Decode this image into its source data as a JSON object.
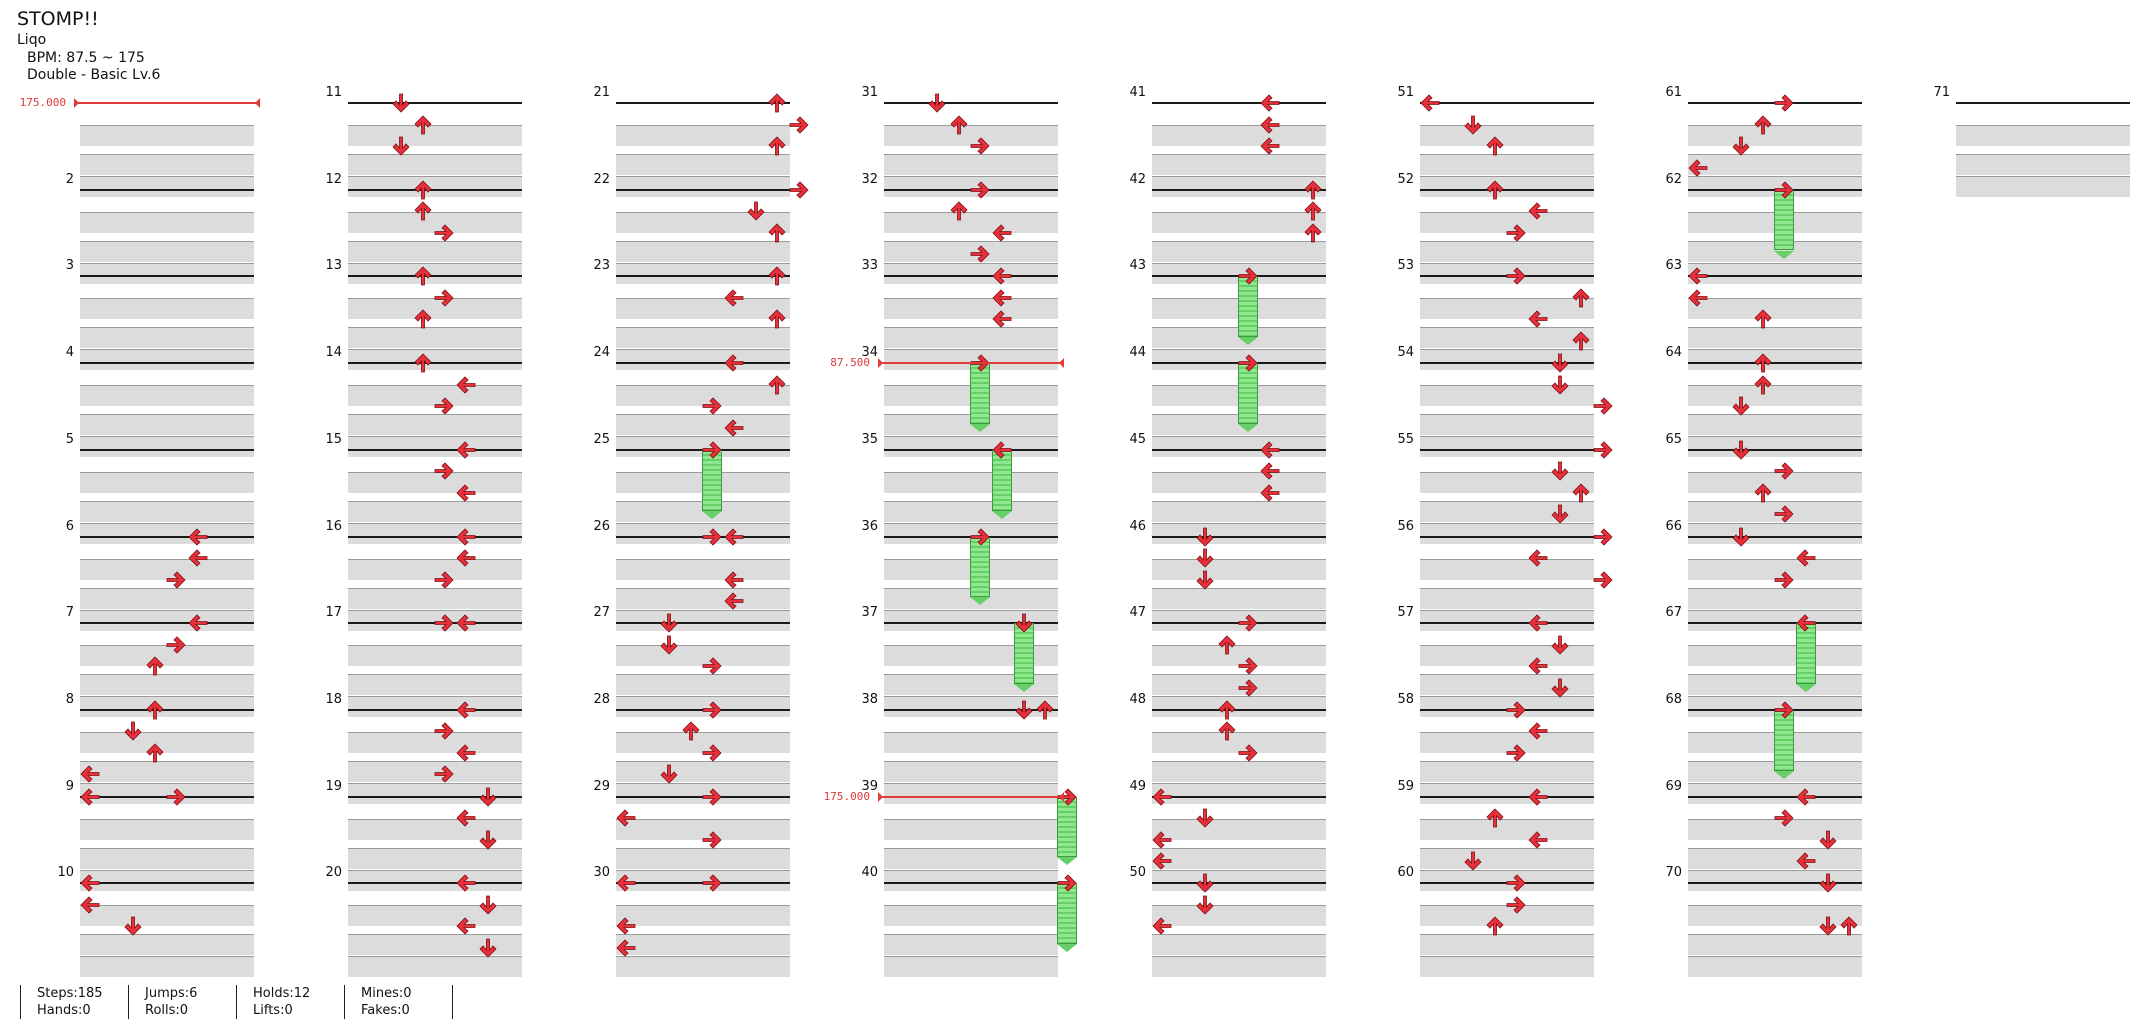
{
  "song": {
    "title": "STOMP!!",
    "artist": "Liqo",
    "bpm": "BPM: 87.5 ~ 175",
    "chart": "Double - Basic Lv.6"
  },
  "stats": {
    "steps": "Steps:185",
    "hands": "Hands:0",
    "jumps": "Jumps:6",
    "rolls": "Rolls:0",
    "holds": "Holds:12",
    "lifts": "Lifts:0",
    "mines": "Mines:0",
    "fakes": "Fakes:0"
  },
  "colors": {
    "arrow": "#e8303a",
    "hold": "#7ddc7d",
    "bpm_marker": "#e23a3a",
    "stripe": "#dcdcdc"
  },
  "bpm_changes": [
    {
      "measure": 1,
      "label": "175.000"
    },
    {
      "measure": 34,
      "label": "87.500"
    },
    {
      "measure": 39,
      "label": "175.000"
    }
  ],
  "measures": [
    {
      "n": "",
      "notes": []
    },
    {
      "n": "2",
      "notes": []
    },
    {
      "n": "3",
      "notes": []
    },
    {
      "n": "4",
      "notes": []
    },
    {
      "n": "5",
      "notes": []
    },
    {
      "n": "6",
      "notes": [
        [
          0,
          5,
          "left"
        ],
        [
          0.25,
          5,
          "left"
        ],
        [
          0.5,
          4,
          "right"
        ]
      ]
    },
    {
      "n": "7",
      "notes": [
        [
          0,
          5,
          "left"
        ],
        [
          0.25,
          4,
          "right"
        ],
        [
          0.5,
          3,
          "up"
        ]
      ]
    },
    {
      "n": "8",
      "notes": [
        [
          0,
          3,
          "up"
        ],
        [
          0.25,
          2,
          "down"
        ],
        [
          0.5,
          3,
          "up"
        ],
        [
          0.75,
          0,
          "left"
        ]
      ]
    },
    {
      "n": "9",
      "notes": [
        [
          0,
          0,
          "left"
        ],
        [
          0,
          4,
          "right"
        ]
      ]
    },
    {
      "n": "10",
      "notes": [
        [
          0,
          0,
          "left"
        ],
        [
          0.25,
          0,
          "left"
        ],
        [
          0.5,
          2,
          "down"
        ]
      ]
    },
    {
      "n": "11",
      "notes": [
        [
          0,
          2,
          "down"
        ],
        [
          0.25,
          3,
          "up"
        ],
        [
          0.5,
          2,
          "down"
        ]
      ]
    },
    {
      "n": "12",
      "notes": [
        [
          0,
          3,
          "up"
        ],
        [
          0.25,
          3,
          "up"
        ],
        [
          0.5,
          4,
          "right"
        ]
      ]
    },
    {
      "n": "13",
      "notes": [
        [
          0,
          3,
          "up"
        ],
        [
          0.25,
          4,
          "right"
        ],
        [
          0.5,
          3,
          "up"
        ]
      ]
    },
    {
      "n": "14",
      "notes": [
        [
          0,
          3,
          "up"
        ],
        [
          0.25,
          5,
          "left"
        ],
        [
          0.5,
          4,
          "right"
        ]
      ]
    },
    {
      "n": "15",
      "notes": [
        [
          0,
          5,
          "left"
        ],
        [
          0.25,
          4,
          "right"
        ],
        [
          0.5,
          5,
          "left"
        ]
      ]
    },
    {
      "n": "16",
      "notes": [
        [
          0,
          5,
          "left"
        ],
        [
          0.25,
          5,
          "left"
        ],
        [
          0.5,
          4,
          "right"
        ]
      ]
    },
    {
      "n": "17",
      "notes": [
        [
          0,
          4,
          "right"
        ],
        [
          0,
          5,
          "left"
        ]
      ]
    },
    {
      "n": "18",
      "notes": [
        [
          0,
          5,
          "left"
        ],
        [
          0.25,
          4,
          "right"
        ],
        [
          0.5,
          5,
          "left"
        ],
        [
          0.75,
          4,
          "right"
        ]
      ]
    },
    {
      "n": "19",
      "notes": [
        [
          0,
          6,
          "down"
        ],
        [
          0.25,
          5,
          "left"
        ],
        [
          0.5,
          6,
          "down"
        ]
      ]
    },
    {
      "n": "20",
      "notes": [
        [
          0,
          5,
          "left"
        ],
        [
          0.25,
          6,
          "down"
        ],
        [
          0.5,
          5,
          "left"
        ],
        [
          0.75,
          6,
          "down"
        ]
      ]
    },
    {
      "n": "21",
      "notes": [
        [
          0,
          7,
          "up"
        ],
        [
          0.25,
          8,
          "right"
        ],
        [
          0.5,
          7,
          "up"
        ]
      ]
    },
    {
      "n": "22",
      "notes": [
        [
          0,
          8,
          "right"
        ],
        [
          0.25,
          6,
          "down"
        ],
        [
          0.5,
          7,
          "up"
        ]
      ]
    },
    {
      "n": "23",
      "notes": [
        [
          0,
          7,
          "up"
        ],
        [
          0.25,
          5,
          "left"
        ],
        [
          0.5,
          7,
          "up"
        ]
      ]
    },
    {
      "n": "24",
      "notes": [
        [
          0,
          5,
          "left"
        ],
        [
          0.25,
          7,
          "up"
        ],
        [
          0.5,
          4,
          "right"
        ],
        [
          0.75,
          5,
          "left"
        ]
      ]
    },
    {
      "n": "25",
      "notes": [
        [
          0,
          4,
          "right"
        ]
      ],
      "holds": [
        [
          0,
          4,
          0.8
        ]
      ]
    },
    {
      "n": "26",
      "notes": [
        [
          0,
          4,
          "right"
        ],
        [
          0,
          5,
          "left"
        ],
        [
          0.5,
          5,
          "left"
        ],
        [
          0.75,
          5,
          "left"
        ]
      ]
    },
    {
      "n": "27",
      "notes": [
        [
          0,
          2,
          "down"
        ],
        [
          0.25,
          2,
          "down"
        ],
        [
          0.5,
          4,
          "right"
        ]
      ]
    },
    {
      "n": "28",
      "notes": [
        [
          0,
          4,
          "right"
        ],
        [
          0.25,
          3,
          "up"
        ],
        [
          0.5,
          4,
          "right"
        ],
        [
          0.75,
          2,
          "down"
        ]
      ]
    },
    {
      "n": "29",
      "notes": [
        [
          0,
          4,
          "right"
        ],
        [
          0.25,
          0,
          "left"
        ],
        [
          0.5,
          4,
          "right"
        ]
      ]
    },
    {
      "n": "30",
      "notes": [
        [
          0,
          0,
          "left"
        ],
        [
          0,
          4,
          "right"
        ],
        [
          0.5,
          0,
          "left"
        ],
        [
          0.75,
          0,
          "left"
        ]
      ]
    },
    {
      "n": "31",
      "notes": [
        [
          0,
          2,
          "down"
        ],
        [
          0.25,
          3,
          "up"
        ],
        [
          0.5,
          4,
          "right"
        ]
      ]
    },
    {
      "n": "32",
      "notes": [
        [
          0,
          4,
          "right"
        ],
        [
          0.25,
          3,
          "up"
        ],
        [
          0.5,
          5,
          "left"
        ],
        [
          0.75,
          4,
          "right"
        ]
      ]
    },
    {
      "n": "33",
      "notes": [
        [
          0,
          5,
          "left"
        ],
        [
          0.25,
          5,
          "left"
        ],
        [
          0.5,
          5,
          "left"
        ]
      ]
    },
    {
      "n": "34",
      "notes": [
        [
          0,
          4,
          "right"
        ]
      ],
      "holds": [
        [
          0,
          4,
          0.8
        ]
      ]
    },
    {
      "n": "35",
      "notes": [
        [
          0,
          5,
          "left"
        ]
      ],
      "holds": [
        [
          0,
          5,
          0.8
        ]
      ]
    },
    {
      "n": "36",
      "notes": [
        [
          0,
          4,
          "right"
        ]
      ],
      "holds": [
        [
          0,
          4,
          0.8
        ]
      ]
    },
    {
      "n": "37",
      "notes": [
        [
          0,
          6,
          "down"
        ]
      ],
      "holds": [
        [
          0,
          6,
          0.8
        ]
      ]
    },
    {
      "n": "38",
      "notes": [
        [
          0,
          6,
          "down"
        ],
        [
          0,
          7,
          "up"
        ]
      ]
    },
    {
      "n": "39",
      "notes": [
        [
          0,
          8,
          "right"
        ]
      ],
      "holds": [
        [
          0,
          8,
          0.8
        ]
      ]
    },
    {
      "n": "40",
      "notes": [
        [
          0,
          8,
          "right"
        ]
      ],
      "holds": [
        [
          0,
          8,
          0.8
        ]
      ]
    },
    {
      "n": "41",
      "notes": [
        [
          0,
          5,
          "left"
        ],
        [
          0.25,
          5,
          "left"
        ],
        [
          0.5,
          5,
          "left"
        ]
      ]
    },
    {
      "n": "42",
      "notes": [
        [
          0,
          7,
          "up"
        ],
        [
          0.25,
          7,
          "up"
        ],
        [
          0.5,
          7,
          "up"
        ]
      ]
    },
    {
      "n": "43",
      "notes": [
        [
          0,
          4,
          "right"
        ]
      ],
      "holds": [
        [
          0,
          4,
          0.8
        ]
      ]
    },
    {
      "n": "44",
      "notes": [
        [
          0,
          4,
          "right"
        ]
      ],
      "holds": [
        [
          0,
          4,
          0.8
        ]
      ]
    },
    {
      "n": "45",
      "notes": [
        [
          0,
          5,
          "left"
        ],
        [
          0.25,
          5,
          "left"
        ],
        [
          0.5,
          5,
          "left"
        ]
      ]
    },
    {
      "n": "46",
      "notes": [
        [
          0,
          2,
          "down"
        ],
        [
          0.25,
          2,
          "down"
        ],
        [
          0.5,
          2,
          "down"
        ]
      ]
    },
    {
      "n": "47",
      "notes": [
        [
          0,
          4,
          "right"
        ],
        [
          0.25,
          3,
          "up"
        ],
        [
          0.5,
          4,
          "right"
        ],
        [
          0.75,
          4,
          "right"
        ]
      ]
    },
    {
      "n": "48",
      "notes": [
        [
          0,
          3,
          "up"
        ],
        [
          0.25,
          3,
          "up"
        ],
        [
          0.5,
          4,
          "right"
        ]
      ]
    },
    {
      "n": "49",
      "notes": [
        [
          0,
          0,
          "left"
        ],
        [
          0.25,
          2,
          "down"
        ],
        [
          0.5,
          0,
          "left"
        ],
        [
          0.75,
          0,
          "left"
        ]
      ]
    },
    {
      "n": "50",
      "notes": [
        [
          0,
          2,
          "down"
        ],
        [
          0.25,
          2,
          "down"
        ],
        [
          0.5,
          0,
          "left"
        ]
      ]
    },
    {
      "n": "51",
      "notes": [
        [
          0,
          0,
          "left"
        ],
        [
          0.25,
          2,
          "down"
        ],
        [
          0.5,
          3,
          "up"
        ]
      ]
    },
    {
      "n": "52",
      "notes": [
        [
          0,
          3,
          "up"
        ],
        [
          0.25,
          5,
          "left"
        ],
        [
          0.5,
          4,
          "right"
        ]
      ]
    },
    {
      "n": "53",
      "notes": [
        [
          0,
          4,
          "right"
        ],
        [
          0.25,
          7,
          "up"
        ],
        [
          0.5,
          5,
          "left"
        ],
        [
          0.75,
          7,
          "up"
        ]
      ]
    },
    {
      "n": "54",
      "notes": [
        [
          0,
          6,
          "down"
        ],
        [
          0.25,
          6,
          "down"
        ],
        [
          0.5,
          8,
          "right"
        ]
      ]
    },
    {
      "n": "55",
      "notes": [
        [
          0,
          8,
          "right"
        ],
        [
          0.25,
          6,
          "down"
        ],
        [
          0.5,
          7,
          "up"
        ],
        [
          0.75,
          6,
          "down"
        ]
      ]
    },
    {
      "n": "56",
      "notes": [
        [
          0,
          8,
          "right"
        ],
        [
          0.25,
          5,
          "left"
        ],
        [
          0.5,
          8,
          "right"
        ]
      ]
    },
    {
      "n": "57",
      "notes": [
        [
          0,
          5,
          "left"
        ],
        [
          0.25,
          6,
          "down"
        ],
        [
          0.5,
          5,
          "left"
        ],
        [
          0.75,
          6,
          "down"
        ]
      ]
    },
    {
      "n": "58",
      "notes": [
        [
          0,
          4,
          "right"
        ],
        [
          0.25,
          5,
          "left"
        ],
        [
          0.5,
          4,
          "right"
        ]
      ]
    },
    {
      "n": "59",
      "notes": [
        [
          0,
          5,
          "left"
        ],
        [
          0.25,
          3,
          "up"
        ],
        [
          0.5,
          5,
          "left"
        ],
        [
          0.75,
          2,
          "down"
        ]
      ]
    },
    {
      "n": "60",
      "notes": [
        [
          0,
          4,
          "right"
        ],
        [
          0.25,
          4,
          "right"
        ],
        [
          0.5,
          3,
          "up"
        ]
      ]
    },
    {
      "n": "61",
      "notes": [
        [
          0,
          4,
          "right"
        ],
        [
          0.25,
          3,
          "up"
        ],
        [
          0.5,
          2,
          "down"
        ],
        [
          0.75,
          0,
          "left"
        ]
      ]
    },
    {
      "n": "62",
      "notes": [
        [
          0,
          4,
          "right"
        ]
      ],
      "holds": [
        [
          0,
          4,
          0.8
        ]
      ]
    },
    {
      "n": "63",
      "notes": [
        [
          0,
          0,
          "left"
        ],
        [
          0.25,
          0,
          "left"
        ],
        [
          0.5,
          3,
          "up"
        ]
      ]
    },
    {
      "n": "64",
      "notes": [
        [
          0,
          3,
          "up"
        ],
        [
          0.25,
          3,
          "up"
        ],
        [
          0.5,
          2,
          "down"
        ]
      ]
    },
    {
      "n": "65",
      "notes": [
        [
          0,
          2,
          "down"
        ],
        [
          0.25,
          4,
          "right"
        ],
        [
          0.5,
          3,
          "up"
        ],
        [
          0.75,
          4,
          "right"
        ]
      ]
    },
    {
      "n": "66",
      "notes": [
        [
          0,
          2,
          "down"
        ],
        [
          0.25,
          5,
          "left"
        ],
        [
          0.5,
          4,
          "right"
        ]
      ]
    },
    {
      "n": "67",
      "notes": [
        [
          0,
          5,
          "left"
        ]
      ],
      "holds": [
        [
          0,
          5,
          0.8
        ]
      ]
    },
    {
      "n": "68",
      "notes": [
        [
          0,
          4,
          "right"
        ]
      ],
      "holds": [
        [
          0,
          4,
          0.8
        ]
      ]
    },
    {
      "n": "69",
      "notes": [
        [
          0,
          5,
          "left"
        ],
        [
          0.25,
          4,
          "right"
        ],
        [
          0.5,
          6,
          "down"
        ],
        [
          0.75,
          5,
          "left"
        ]
      ]
    },
    {
      "n": "70",
      "notes": [
        [
          0,
          6,
          "down"
        ],
        [
          0.5,
          6,
          "down"
        ],
        [
          0.5,
          7,
          "up"
        ]
      ]
    },
    {
      "n": "71",
      "notes": []
    }
  ]
}
